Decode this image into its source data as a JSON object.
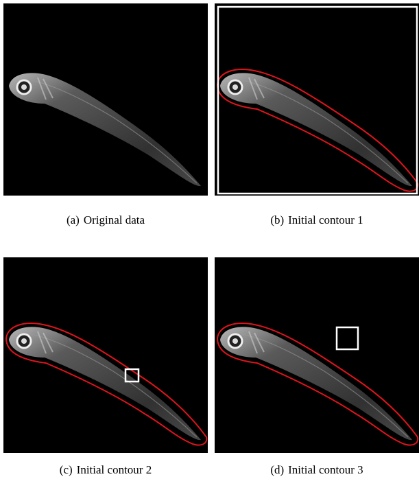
{
  "panels": [
    {
      "label": "(a)",
      "caption": "Original data"
    },
    {
      "label": "(b)",
      "caption": "Initial contour 1"
    },
    {
      "label": "(c)",
      "caption": "Initial contour 2"
    },
    {
      "label": "(d)",
      "caption": "Initial contour 3"
    }
  ]
}
